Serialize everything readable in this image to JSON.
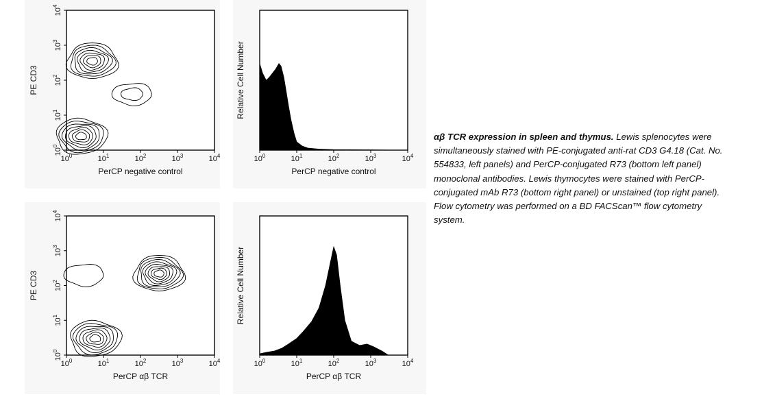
{
  "chart_data": [
    {
      "type": "contour",
      "title": "",
      "xlabel": "PerCP negative control",
      "ylabel": "PE CD3",
      "xscale": "log",
      "yscale": "log",
      "xlim": [
        1,
        10000
      ],
      "ylim": [
        1,
        10000
      ],
      "xticks": [
        {
          "base": "10",
          "exp": "0"
        },
        {
          "base": "10",
          "exp": "1"
        },
        {
          "base": "10",
          "exp": "2"
        },
        {
          "base": "10",
          "exp": "3"
        },
        {
          "base": "10",
          "exp": "4"
        }
      ],
      "yticks": [
        {
          "base": "10",
          "exp": "0"
        },
        {
          "base": "10",
          "exp": "1"
        },
        {
          "base": "10",
          "exp": "2"
        },
        {
          "base": "10",
          "exp": "3"
        },
        {
          "base": "10",
          "exp": "4"
        }
      ],
      "populations": [
        {
          "x_center": 5,
          "y_center": 350,
          "levels": 7
        },
        {
          "x_center": 2.5,
          "y_center": 2.5,
          "levels": 7
        },
        {
          "x_center": 60,
          "y_center": 40,
          "levels": 2
        }
      ]
    },
    {
      "type": "histogram",
      "title": "",
      "xlabel": "PerCP negative control",
      "ylabel": "Relative Cell Number",
      "xscale": "log",
      "xlim": [
        1,
        10000
      ],
      "xticks": [
        {
          "base": "10",
          "exp": "0"
        },
        {
          "base": "10",
          "exp": "1"
        },
        {
          "base": "10",
          "exp": "2"
        },
        {
          "base": "10",
          "exp": "3"
        },
        {
          "base": "10",
          "exp": "4"
        }
      ],
      "x": [
        1.0,
        1.2,
        1.5,
        1.8,
        2.2,
        2.7,
        3.3,
        3.8,
        4.5,
        5.2,
        6.0,
        7.0,
        8.5,
        10,
        14,
        20,
        40,
        100,
        1000,
        10000
      ],
      "values": [
        0.62,
        0.55,
        0.5,
        0.52,
        0.55,
        0.58,
        0.62,
        0.6,
        0.52,
        0.42,
        0.32,
        0.22,
        0.12,
        0.06,
        0.03,
        0.015,
        0.008,
        0.004,
        0.002,
        0.0
      ]
    },
    {
      "type": "contour",
      "title": "",
      "xlabel": "PerCP αβ TCR",
      "ylabel": "PE CD3",
      "xscale": "log",
      "yscale": "log",
      "xlim": [
        1,
        10000
      ],
      "ylim": [
        1,
        10000
      ],
      "xticks": [
        {
          "base": "10",
          "exp": "0"
        },
        {
          "base": "10",
          "exp": "1"
        },
        {
          "base": "10",
          "exp": "2"
        },
        {
          "base": "10",
          "exp": "3"
        },
        {
          "base": "10",
          "exp": "4"
        }
      ],
      "yticks": [
        {
          "base": "10",
          "exp": "0"
        },
        {
          "base": "10",
          "exp": "1"
        },
        {
          "base": "10",
          "exp": "2"
        },
        {
          "base": "10",
          "exp": "3"
        },
        {
          "base": "10",
          "exp": "4"
        }
      ],
      "populations": [
        {
          "x_center": 320,
          "y_center": 220,
          "levels": 8
        },
        {
          "x_center": 6,
          "y_center": 3,
          "levels": 7
        },
        {
          "x_center": 3,
          "y_center": 200,
          "levels": 1
        }
      ]
    },
    {
      "type": "histogram",
      "title": "",
      "xlabel": "PerCP αβ TCR",
      "ylabel": "Relative Cell Number",
      "xscale": "log",
      "xlim": [
        1,
        10000
      ],
      "xticks": [
        {
          "base": "10",
          "exp": "0"
        },
        {
          "base": "10",
          "exp": "1"
        },
        {
          "base": "10",
          "exp": "2"
        },
        {
          "base": "10",
          "exp": "3"
        },
        {
          "base": "10",
          "exp": "4"
        }
      ],
      "x": [
        1.0,
        1.5,
        2.5,
        4,
        6,
        10,
        15,
        25,
        40,
        60,
        80,
        100,
        120,
        150,
        200,
        300,
        500,
        800,
        1200,
        2000,
        3000,
        10000
      ],
      "values": [
        0.01,
        0.02,
        0.03,
        0.05,
        0.08,
        0.12,
        0.17,
        0.24,
        0.34,
        0.5,
        0.66,
        0.78,
        0.72,
        0.5,
        0.25,
        0.1,
        0.07,
        0.08,
        0.06,
        0.03,
        0.0,
        0.0
      ]
    }
  ],
  "caption": {
    "bold": "αβ TCR expression in spleen and thymus.",
    "text": " Lewis splenocytes were simultaneously stained with PE-conjugated anti-rat CD3 G4.18 (Cat. No. 554833, left panels) and PerCP-conjugated R73 (bottom left panel) monoclonal antibodies. Lewis thymocytes were stained with PerCP-conjugated mAb R73 (bottom right panel) or unstained (top right panel). Flow cytometry was performed on a BD FACScan™ flow cytometry system."
  }
}
